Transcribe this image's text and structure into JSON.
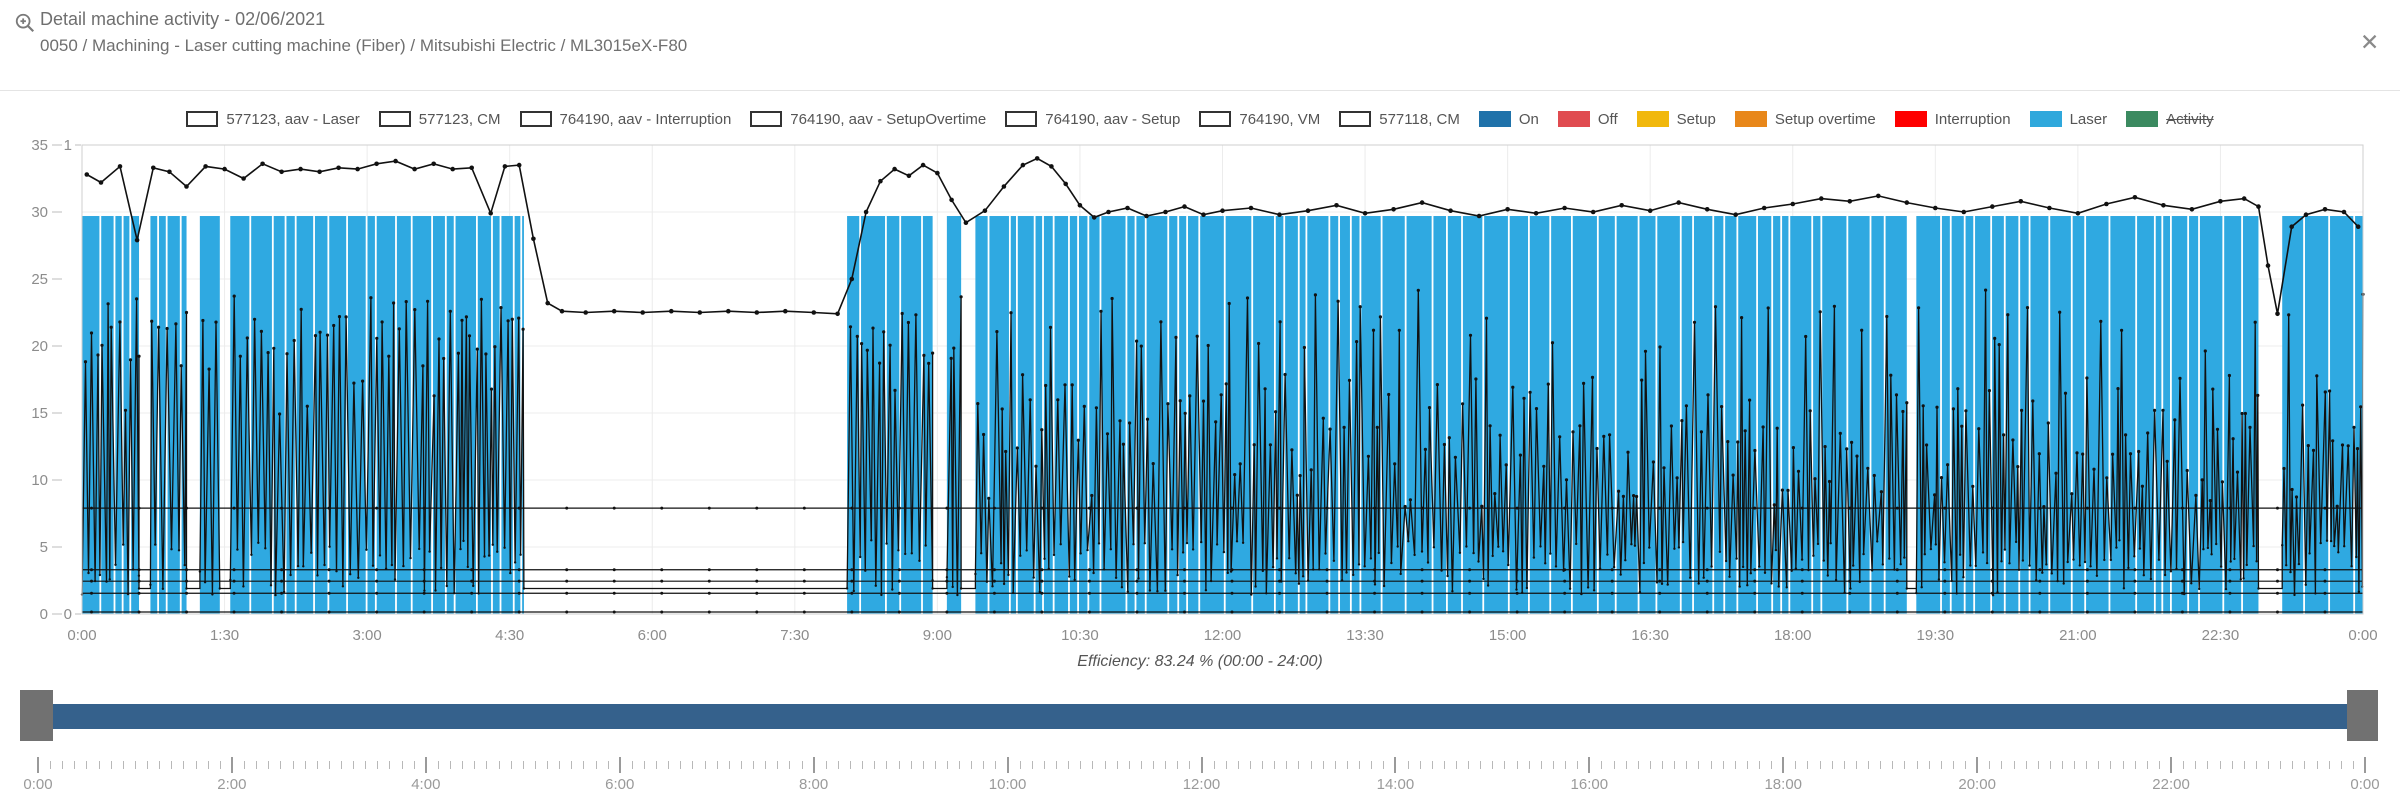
{
  "header": {
    "title": "Detail machine activity - 02/06/2021",
    "subtitle": "0050 / Machining - Laser cutting machine (Fiber) / Mitsubishi Electric / ML3015eX-F80",
    "close_label": "✕"
  },
  "legend": {
    "series_toggles": [
      {
        "label": "577123, aav - Laser",
        "active": true
      },
      {
        "label": "577123, CM",
        "active": true
      },
      {
        "label": "764190, aav - Interruption",
        "active": true
      },
      {
        "label": "764190, aav - SetupOvertime",
        "active": true
      },
      {
        "label": "764190, aav - Setup",
        "active": true
      },
      {
        "label": "764190, VM",
        "active": true
      },
      {
        "label": "577118, CM",
        "active": true
      }
    ],
    "status_toggles": [
      {
        "label": "On",
        "color": "#1F72AA",
        "active": true
      },
      {
        "label": "Off",
        "color": "#E04B50",
        "active": true
      },
      {
        "label": "Setup",
        "color": "#F1B80C",
        "active": true
      },
      {
        "label": "Setup overtime",
        "color": "#E8871A",
        "active": true
      },
      {
        "label": "Interruption",
        "color": "#FE0000",
        "active": true
      },
      {
        "label": "Laser",
        "color": "#2FA8DC",
        "active": true
      },
      {
        "label": "Activity",
        "color": "#3B8A60",
        "active": false
      }
    ]
  },
  "chart_data": {
    "type": "mixed",
    "title": "Detail machine activity - 02/06/2021",
    "x_axis": {
      "unit": "time of day",
      "tick_labels": [
        "0:00",
        "1:30",
        "3:00",
        "4:30",
        "6:00",
        "7:30",
        "9:00",
        "10:30",
        "12:00",
        "13:30",
        "15:00",
        "16:30",
        "18:00",
        "19:30",
        "21:00",
        "22:30",
        "0:00"
      ],
      "tick_hours": [
        0,
        1.5,
        3,
        4.5,
        6,
        7.5,
        9,
        10.5,
        12,
        13.5,
        15,
        16.5,
        18,
        19.5,
        21,
        22.5,
        24
      ],
      "grid": true
    },
    "y_axis_left": {
      "min": 0,
      "max": 35,
      "ticks": [
        0,
        5,
        10,
        15,
        20,
        25,
        30,
        35
      ]
    },
    "y_axis_secondary": {
      "min": 0,
      "max": 1,
      "ticks": [
        0,
        1
      ]
    },
    "laser_bars": {
      "name": "Laser status",
      "color": "#2FA9E1",
      "bar_top_value": 29.7,
      "on_segments_hours": [
        [
          0,
          0.6
        ],
        [
          0.72,
          1.1
        ],
        [
          1.24,
          1.45
        ],
        [
          1.56,
          4.65
        ],
        [
          8.05,
          8.95
        ],
        [
          9.1,
          9.25
        ],
        [
          9.4,
          19.2
        ],
        [
          19.3,
          22.9
        ],
        [
          23.15,
          24
        ]
      ]
    },
    "cm_line": {
      "name": "577123, CM",
      "color": "#111111",
      "points": [
        [
          0.05,
          32.8
        ],
        [
          0.2,
          32.2
        ],
        [
          0.4,
          33.4
        ],
        [
          0.58,
          27.9
        ],
        [
          0.75,
          33.3
        ],
        [
          0.92,
          33.0
        ],
        [
          1.1,
          31.9
        ],
        [
          1.3,
          33.4
        ],
        [
          1.5,
          33.2
        ],
        [
          1.7,
          32.5
        ],
        [
          1.9,
          33.6
        ],
        [
          2.1,
          33.0
        ],
        [
          2.3,
          33.2
        ],
        [
          2.5,
          33.0
        ],
        [
          2.7,
          33.3
        ],
        [
          2.9,
          33.2
        ],
        [
          3.1,
          33.6
        ],
        [
          3.3,
          33.8
        ],
        [
          3.5,
          33.2
        ],
        [
          3.7,
          33.6
        ],
        [
          3.9,
          33.2
        ],
        [
          4.1,
          33.3
        ],
        [
          4.3,
          29.9
        ],
        [
          4.45,
          33.4
        ],
        [
          4.6,
          33.5
        ],
        [
          4.75,
          28.0
        ],
        [
          4.9,
          23.2
        ],
        [
          5.05,
          22.6
        ],
        [
          5.3,
          22.5
        ],
        [
          5.6,
          22.6
        ],
        [
          5.9,
          22.5
        ],
        [
          6.2,
          22.6
        ],
        [
          6.5,
          22.5
        ],
        [
          6.8,
          22.6
        ],
        [
          7.1,
          22.5
        ],
        [
          7.4,
          22.6
        ],
        [
          7.7,
          22.5
        ],
        [
          7.95,
          22.4
        ],
        [
          8.1,
          25.0
        ],
        [
          8.25,
          30.0
        ],
        [
          8.4,
          32.3
        ],
        [
          8.55,
          33.2
        ],
        [
          8.7,
          32.7
        ],
        [
          8.85,
          33.5
        ],
        [
          9.0,
          32.9
        ],
        [
          9.15,
          30.9
        ],
        [
          9.3,
          29.2
        ],
        [
          9.5,
          30.1
        ],
        [
          9.7,
          31.9
        ],
        [
          9.9,
          33.5
        ],
        [
          10.05,
          34.0
        ],
        [
          10.2,
          33.4
        ],
        [
          10.35,
          32.1
        ],
        [
          10.5,
          30.5
        ],
        [
          10.65,
          29.6
        ],
        [
          10.8,
          30.0
        ],
        [
          11.0,
          30.3
        ],
        [
          11.2,
          29.7
        ],
        [
          11.4,
          30.0
        ],
        [
          11.6,
          30.4
        ],
        [
          11.8,
          29.8
        ],
        [
          12.0,
          30.1
        ],
        [
          12.3,
          30.3
        ],
        [
          12.6,
          29.8
        ],
        [
          12.9,
          30.1
        ],
        [
          13.2,
          30.5
        ],
        [
          13.5,
          29.9
        ],
        [
          13.8,
          30.2
        ],
        [
          14.1,
          30.7
        ],
        [
          14.4,
          30.1
        ],
        [
          14.7,
          29.7
        ],
        [
          15.0,
          30.2
        ],
        [
          15.3,
          29.9
        ],
        [
          15.6,
          30.3
        ],
        [
          15.9,
          30.0
        ],
        [
          16.2,
          30.5
        ],
        [
          16.5,
          30.1
        ],
        [
          16.8,
          30.7
        ],
        [
          17.1,
          30.2
        ],
        [
          17.4,
          29.8
        ],
        [
          17.7,
          30.3
        ],
        [
          18.0,
          30.6
        ],
        [
          18.3,
          31.0
        ],
        [
          18.6,
          30.8
        ],
        [
          18.9,
          31.2
        ],
        [
          19.2,
          30.7
        ],
        [
          19.5,
          30.3
        ],
        [
          19.8,
          30.0
        ],
        [
          20.1,
          30.4
        ],
        [
          20.4,
          30.8
        ],
        [
          20.7,
          30.3
        ],
        [
          21.0,
          29.9
        ],
        [
          21.3,
          30.6
        ],
        [
          21.6,
          31.1
        ],
        [
          21.9,
          30.5
        ],
        [
          22.2,
          30.2
        ],
        [
          22.5,
          30.8
        ],
        [
          22.75,
          31.0
        ],
        [
          22.9,
          30.4
        ],
        [
          23.0,
          26.0
        ],
        [
          23.1,
          22.4
        ],
        [
          23.25,
          28.9
        ],
        [
          23.4,
          29.8
        ],
        [
          23.6,
          30.2
        ],
        [
          23.8,
          30.0
        ],
        [
          23.95,
          28.9
        ]
      ]
    },
    "laser_signal": {
      "name": "577123, aav - Laser",
      "color": "#111111",
      "pattern": "dense oscillation between low and high envelope during ON segments, flat ~1.9 across gaps",
      "low_range": [
        1.4,
        5.5
      ],
      "high_range_early": [
        18.5,
        23.8
      ],
      "high_range_late": [
        8,
        24.2
      ],
      "late_after_hour": 9.4,
      "step_hours": 0.03,
      "seed": 7
    },
    "constant_lines": {
      "values": [
        7.9,
        3.3,
        2.45,
        1.55,
        0.15
      ],
      "color": "#111111",
      "dot_every_hours": 0.5
    },
    "efficiency_caption": "Efficiency: 83.24 % (00:00 - 24:00)"
  },
  "range_slider": {
    "bar_color": "#35618C",
    "handle_color": "#717171",
    "ruler_labels": [
      "0:00",
      "2:00",
      "4:00",
      "6:00",
      "8:00",
      "10:00",
      "12:00",
      "14:00",
      "16:00",
      "18:00",
      "20:00",
      "22:00",
      "0:00"
    ],
    "minor_ticks_per_interval": 16
  }
}
